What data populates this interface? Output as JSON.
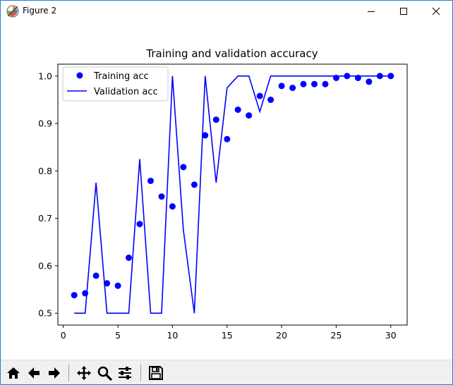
{
  "window": {
    "title": "Figure 2",
    "icons": {
      "app": "matplotlib-icon",
      "minimize": "minimize-icon",
      "maximize": "maximize-icon",
      "close": "close-icon"
    }
  },
  "toolbar": {
    "buttons": [
      {
        "name": "home-button",
        "icon": "home-icon"
      },
      {
        "name": "back-button",
        "icon": "arrow-left-icon"
      },
      {
        "name": "forward-button",
        "icon": "arrow-right-icon"
      },
      {
        "name": "pan-button",
        "icon": "move-icon"
      },
      {
        "name": "zoom-button",
        "icon": "magnifier-icon"
      },
      {
        "name": "configure-subplots-button",
        "icon": "sliders-icon"
      },
      {
        "name": "save-button",
        "icon": "floppy-disk-icon"
      }
    ]
  },
  "colors": {
    "series": "#0000ff",
    "window_border": "#1883d7",
    "toolbar_bg": "#f0f0f0"
  },
  "chart_data": {
    "type": "line",
    "title": "Training and validation accuracy",
    "xlabel": "",
    "ylabel": "",
    "xlim": [
      -0.5,
      31.5
    ],
    "ylim": [
      0.475,
      1.025
    ],
    "xticks": [
      0,
      5,
      10,
      15,
      20,
      25,
      30
    ],
    "xtick_labels": [
      "0",
      "5",
      "10",
      "15",
      "20",
      "25",
      "30"
    ],
    "yticks": [
      0.5,
      0.6,
      0.7,
      0.8,
      0.9,
      1.0
    ],
    "ytick_labels": [
      "0.5",
      "0.6",
      "0.7",
      "0.8",
      "0.9",
      "1.0"
    ],
    "grid": false,
    "legend_position": "top-left",
    "x": [
      1,
      2,
      3,
      4,
      5,
      6,
      7,
      8,
      9,
      10,
      11,
      12,
      13,
      14,
      15,
      16,
      17,
      18,
      19,
      20,
      21,
      22,
      23,
      24,
      25,
      26,
      27,
      28,
      29,
      30
    ],
    "series": [
      {
        "name": "Training acc",
        "style": "points",
        "color": "#0000ff",
        "values": [
          0.538,
          0.542,
          0.579,
          0.563,
          0.558,
          0.617,
          0.688,
          0.779,
          0.746,
          0.725,
          0.808,
          0.771,
          0.875,
          0.908,
          0.867,
          0.929,
          0.917,
          0.958,
          0.95,
          0.979,
          0.975,
          0.983,
          0.983,
          0.983,
          0.996,
          1.0,
          0.996,
          0.988,
          1.0,
          1.0
        ]
      },
      {
        "name": "Validation acc",
        "style": "line",
        "color": "#0000ff",
        "values": [
          0.5,
          0.5,
          0.775,
          0.5,
          0.5,
          0.5,
          0.825,
          0.5,
          0.5,
          1.0,
          0.675,
          0.5,
          1.0,
          0.775,
          0.975,
          1.0,
          1.0,
          0.925,
          1.0,
          1.0,
          1.0,
          1.0,
          1.0,
          1.0,
          1.0,
          1.0,
          1.0,
          1.0,
          1.0,
          1.0
        ]
      }
    ]
  }
}
